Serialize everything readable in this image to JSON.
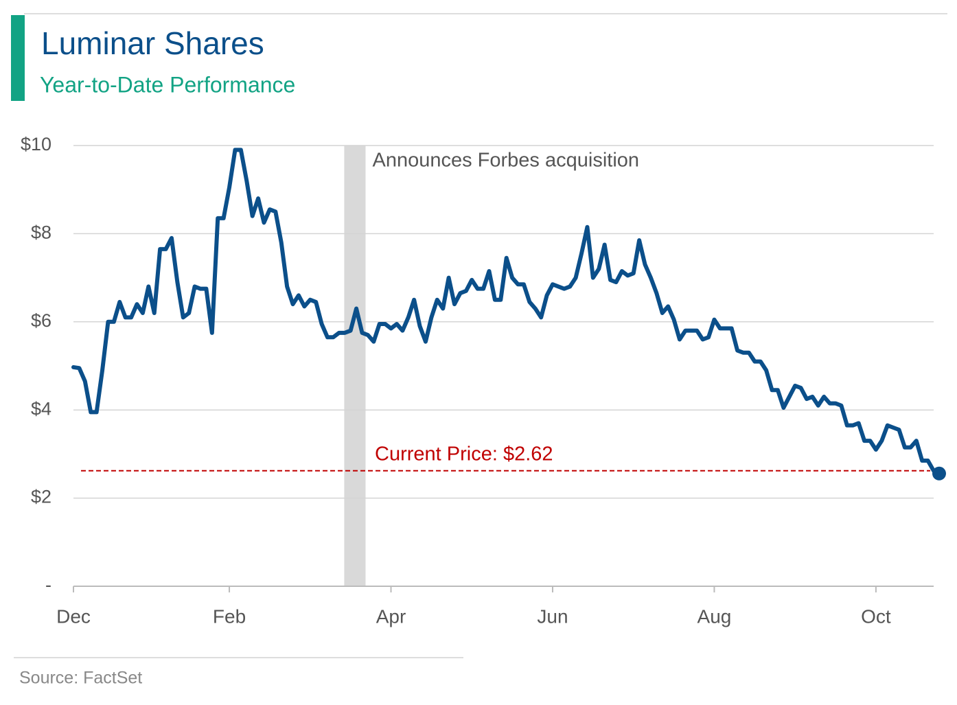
{
  "chart_data": {
    "type": "line",
    "title": "Luminar Shares",
    "subtitle": "Year-to-Date Performance",
    "source": "Source: FactSet",
    "color": "#0b4f8a",
    "values": [
      4.97,
      4.95,
      4.65,
      3.95,
      3.95,
      4.9,
      6.0,
      6.0,
      6.45,
      6.1,
      6.1,
      6.4,
      6.2,
      6.8,
      6.2,
      7.65,
      7.65,
      7.9,
      6.9,
      6.1,
      6.2,
      6.8,
      6.75,
      6.75,
      5.75,
      8.35,
      8.35,
      9.05,
      9.9,
      9.9,
      9.2,
      8.4,
      8.8,
      8.25,
      8.55,
      8.5,
      7.8,
      6.8,
      6.4,
      6.6,
      6.35,
      6.5,
      6.45,
      5.95,
      5.65,
      5.65,
      5.75,
      5.75,
      5.8,
      6.3,
      5.75,
      5.7,
      5.55,
      5.95,
      5.95,
      5.85,
      5.95,
      5.8,
      6.1,
      6.5,
      5.9,
      5.55,
      6.1,
      6.5,
      6.3,
      7.0,
      6.4,
      6.65,
      6.7,
      6.95,
      6.75,
      6.75,
      7.15,
      6.5,
      6.5,
      7.45,
      7.0,
      6.85,
      6.85,
      6.45,
      6.3,
      6.1,
      6.6,
      6.85,
      6.8,
      6.75,
      6.8,
      7.0,
      7.55,
      8.15,
      7.0,
      7.2,
      7.75,
      6.95,
      6.9,
      7.15,
      7.05,
      7.1,
      7.85,
      7.3,
      7.0,
      6.65,
      6.2,
      6.35,
      6.05,
      5.6,
      5.8,
      5.8,
      5.8,
      5.6,
      5.65,
      6.05,
      5.85,
      5.85,
      5.85,
      5.35,
      5.3,
      5.3,
      5.1,
      5.1,
      4.9,
      4.45,
      4.45,
      4.05,
      4.3,
      4.55,
      4.5,
      4.25,
      4.3,
      4.1,
      4.3,
      4.15,
      4.15,
      4.1,
      3.65,
      3.65,
      3.7,
      3.3,
      3.3,
      3.1,
      3.3,
      3.65,
      3.6,
      3.55,
      3.15,
      3.15,
      3.3,
      2.85,
      2.85,
      2.62
    ],
    "xlim": [
      0,
      149
    ],
    "xticks": [
      {
        "value": 0,
        "label": "Dec"
      },
      {
        "value": 27,
        "label": "Feb"
      },
      {
        "value": 55,
        "label": "Apr"
      },
      {
        "value": 83,
        "label": "Jun"
      },
      {
        "value": 111,
        "label": "Aug"
      },
      {
        "value": 139,
        "label": "Oct"
      }
    ],
    "ylim": [
      0,
      10
    ],
    "yticks": [
      {
        "value": 0,
        "label": "-"
      },
      {
        "value": 2,
        "label": "$2"
      },
      {
        "value": 4,
        "label": "$4"
      },
      {
        "value": 6,
        "label": "$6"
      },
      {
        "value": 8,
        "label": "$8"
      },
      {
        "value": 10,
        "label": "$10"
      }
    ],
    "grid": true,
    "highlight": {
      "label": "Announces Forbes acquisition",
      "x": [
        46.9,
        50.6
      ],
      "color": "#d9d9d9"
    },
    "reference": {
      "value": 2.62,
      "label": "Current Price: $2.62",
      "color": "#c00000"
    }
  }
}
